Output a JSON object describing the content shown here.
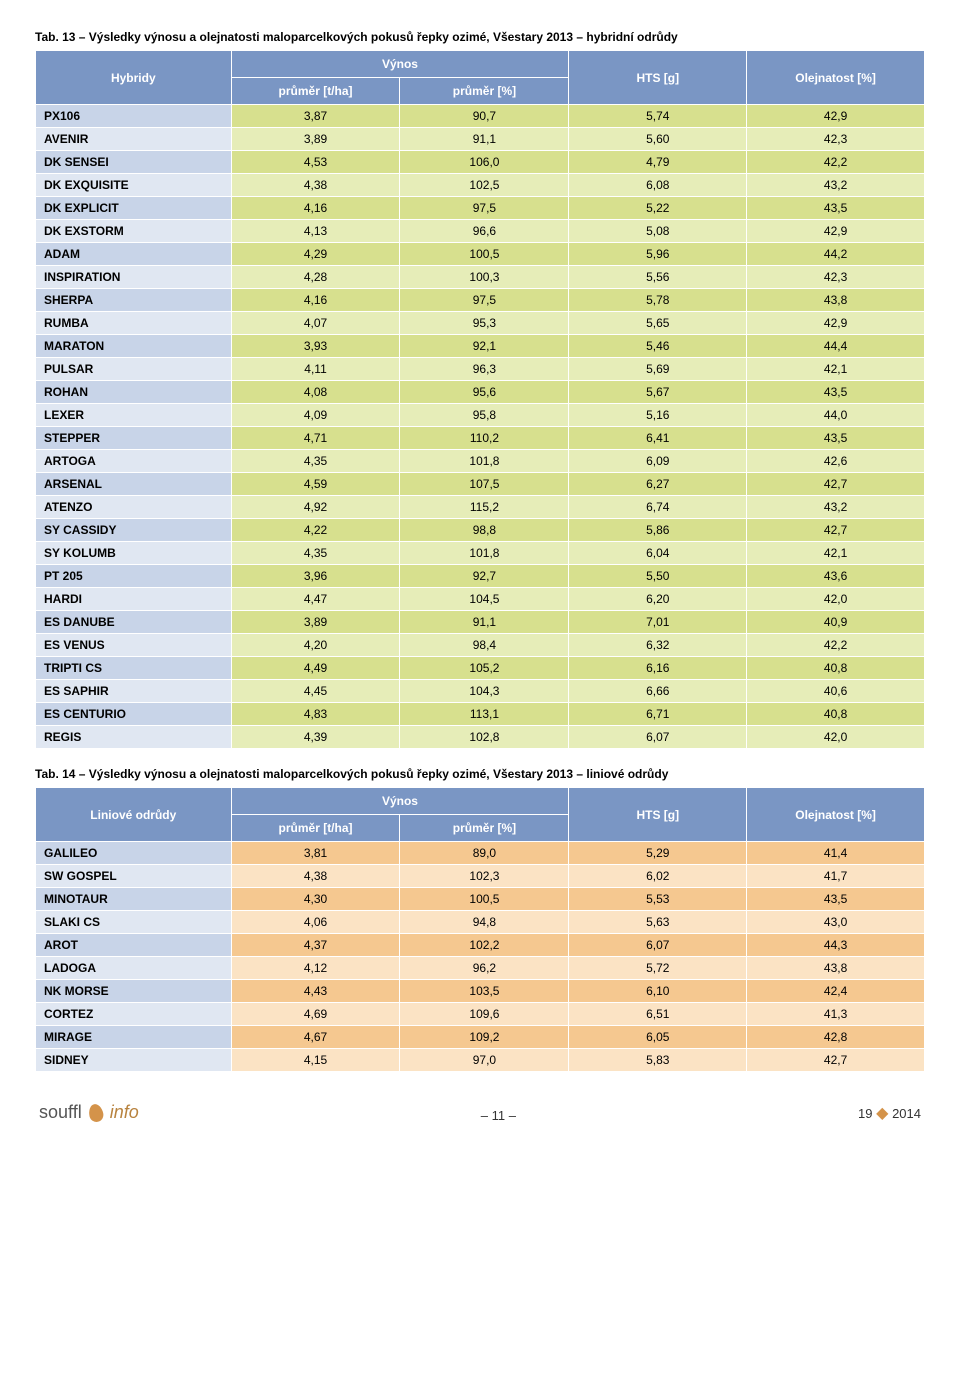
{
  "table1": {
    "title": "Tab. 13 – Výsledky výnosu a olejnatosti maloparcelkových pokusů řepky ozimé, Všestary 2013 – hybridní odrůdy",
    "header": {
      "col1": "Hybridy",
      "col_vynos": "Výnos",
      "col_v1": "průměr [t/ha]",
      "col_v2": "průměr [%]",
      "col_hts": "HTS [g]",
      "col_oil": "Olejnatost [%]"
    },
    "header_bg": "#7a96c4",
    "row_colors": {
      "a": "#d7e08e",
      "b": "#e6edb8",
      "blue_a": "#c8d4e8",
      "blue_b": "#e0e7f2"
    },
    "rows": [
      {
        "name": "PX106",
        "v1": "3,87",
        "v2": "90,7",
        "hts": "5,74",
        "oil": "42,9"
      },
      {
        "name": "AVENIR",
        "v1": "3,89",
        "v2": "91,1",
        "hts": "5,60",
        "oil": "42,3"
      },
      {
        "name": "DK SENSEI",
        "v1": "4,53",
        "v2": "106,0",
        "hts": "4,79",
        "oil": "42,2"
      },
      {
        "name": "DK EXQUISITE",
        "v1": "4,38",
        "v2": "102,5",
        "hts": "6,08",
        "oil": "43,2"
      },
      {
        "name": "DK EXPLICIT",
        "v1": "4,16",
        "v2": "97,5",
        "hts": "5,22",
        "oil": "43,5"
      },
      {
        "name": "DK EXSTORM",
        "v1": "4,13",
        "v2": "96,6",
        "hts": "5,08",
        "oil": "42,9"
      },
      {
        "name": "ADAM",
        "v1": "4,29",
        "v2": "100,5",
        "hts": "5,96",
        "oil": "44,2"
      },
      {
        "name": "INSPIRATION",
        "v1": "4,28",
        "v2": "100,3",
        "hts": "5,56",
        "oil": "42,3"
      },
      {
        "name": "SHERPA",
        "v1": "4,16",
        "v2": "97,5",
        "hts": "5,78",
        "oil": "43,8"
      },
      {
        "name": "RUMBA",
        "v1": "4,07",
        "v2": "95,3",
        "hts": "5,65",
        "oil": "42,9"
      },
      {
        "name": "MARATON",
        "v1": "3,93",
        "v2": "92,1",
        "hts": "5,46",
        "oil": "44,4"
      },
      {
        "name": "PULSAR",
        "v1": "4,11",
        "v2": "96,3",
        "hts": "5,69",
        "oil": "42,1"
      },
      {
        "name": "ROHAN",
        "v1": "4,08",
        "v2": "95,6",
        "hts": "5,67",
        "oil": "43,5"
      },
      {
        "name": "LEXER",
        "v1": "4,09",
        "v2": "95,8",
        "hts": "5,16",
        "oil": "44,0"
      },
      {
        "name": "STEPPER",
        "v1": "4,71",
        "v2": "110,2",
        "hts": "6,41",
        "oil": "43,5"
      },
      {
        "name": "ARTOGA",
        "v1": "4,35",
        "v2": "101,8",
        "hts": "6,09",
        "oil": "42,6"
      },
      {
        "name": "ARSENAL",
        "v1": "4,59",
        "v2": "107,5",
        "hts": "6,27",
        "oil": "42,7"
      },
      {
        "name": "ATENZO",
        "v1": "4,92",
        "v2": "115,2",
        "hts": "6,74",
        "oil": "43,2"
      },
      {
        "name": "SY CASSIDY",
        "v1": "4,22",
        "v2": "98,8",
        "hts": "5,86",
        "oil": "42,7"
      },
      {
        "name": "SY KOLUMB",
        "v1": "4,35",
        "v2": "101,8",
        "hts": "6,04",
        "oil": "42,1"
      },
      {
        "name": "PT 205",
        "v1": "3,96",
        "v2": "92,7",
        "hts": "5,50",
        "oil": "43,6"
      },
      {
        "name": "HARDI",
        "v1": "4,47",
        "v2": "104,5",
        "hts": "6,20",
        "oil": "42,0"
      },
      {
        "name": "ES DANUBE",
        "v1": "3,89",
        "v2": "91,1",
        "hts": "7,01",
        "oil": "40,9"
      },
      {
        "name": "ES VENUS",
        "v1": "4,20",
        "v2": "98,4",
        "hts": "6,32",
        "oil": "42,2"
      },
      {
        "name": "TRIPTI CS",
        "v1": "4,49",
        "v2": "105,2",
        "hts": "6,16",
        "oil": "40,8"
      },
      {
        "name": "ES SAPHIR",
        "v1": "4,45",
        "v2": "104,3",
        "hts": "6,66",
        "oil": "40,6"
      },
      {
        "name": "ES CENTURIO",
        "v1": "4,83",
        "v2": "113,1",
        "hts": "6,71",
        "oil": "40,8"
      },
      {
        "name": "REGIS",
        "v1": "4,39",
        "v2": "102,8",
        "hts": "6,07",
        "oil": "42,0"
      }
    ]
  },
  "table2": {
    "title": "Tab. 14 – Výsledky výnosu a olejnatosti maloparcelkových pokusů řepky ozimé, Všestary 2013 – liniové odrůdy",
    "header": {
      "col1": "Liniové odrůdy",
      "col_vynos": "Výnos",
      "col_v1": "průměr [t/ha]",
      "col_v2": "průměr [%]",
      "col_hts": "HTS [g]",
      "col_oil": "Olejnatost [%]"
    },
    "row_colors": {
      "a": "#f5c890",
      "b": "#fbe3c4"
    },
    "rows": [
      {
        "name": "GALILEO",
        "v1": "3,81",
        "v2": "89,0",
        "hts": "5,29",
        "oil": "41,4"
      },
      {
        "name": "SW GOSPEL",
        "v1": "4,38",
        "v2": "102,3",
        "hts": "6,02",
        "oil": "41,7"
      },
      {
        "name": "MINOTAUR",
        "v1": "4,30",
        "v2": "100,5",
        "hts": "5,53",
        "oil": "43,5"
      },
      {
        "name": "SLAKI CS",
        "v1": "4,06",
        "v2": "94,8",
        "hts": "5,63",
        "oil": "43,0"
      },
      {
        "name": "AROT",
        "v1": "4,37",
        "v2": "102,2",
        "hts": "6,07",
        "oil": "44,3"
      },
      {
        "name": "LADOGA",
        "v1": "4,12",
        "v2": "96,2",
        "hts": "5,72",
        "oil": "43,8"
      },
      {
        "name": "NK MORSE",
        "v1": "4,43",
        "v2": "103,5",
        "hts": "6,10",
        "oil": "42,4"
      },
      {
        "name": "CORTEZ",
        "v1": "4,69",
        "v2": "109,6",
        "hts": "6,51",
        "oil": "41,3"
      },
      {
        "name": "MIRAGE",
        "v1": "4,67",
        "v2": "109,2",
        "hts": "6,05",
        "oil": "42,8"
      },
      {
        "name": "SIDNEY",
        "v1": "4,15",
        "v2": "97,0",
        "hts": "5,83",
        "oil": "42,7"
      }
    ]
  },
  "footer": {
    "logo_souffl": "souffl",
    "logo_info": "info",
    "center": "– 11 –",
    "right_issue": "19",
    "right_year": "2014"
  }
}
